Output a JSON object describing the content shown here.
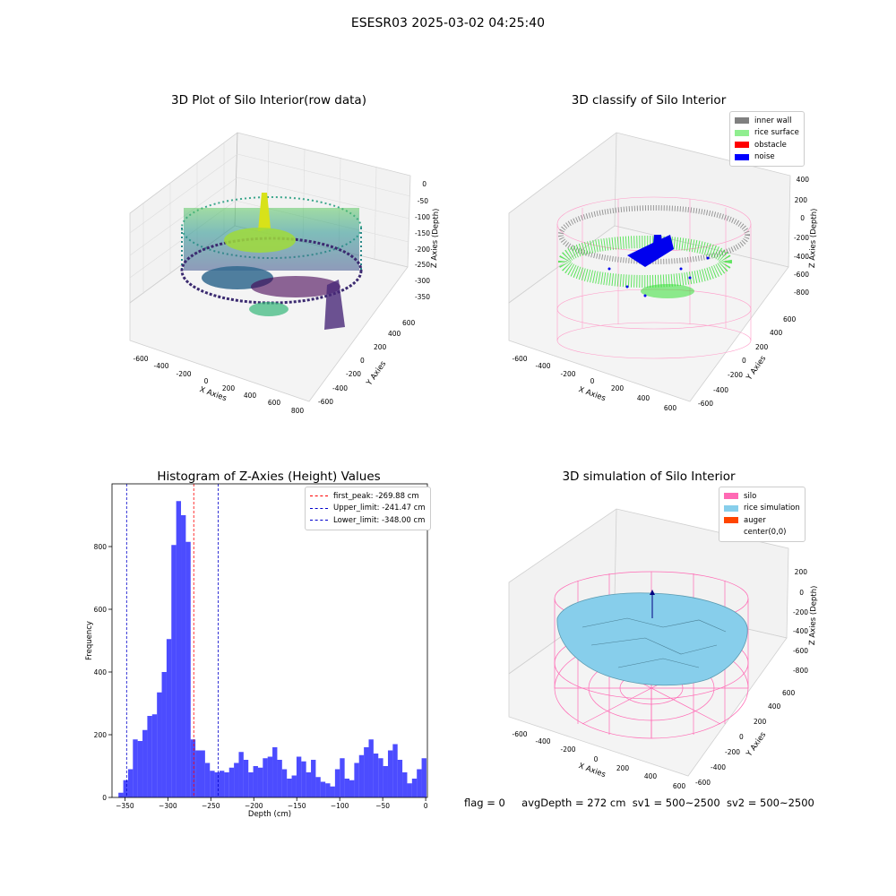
{
  "suptitle": "ESESR03 2025-03-02 04:25:40",
  "panels": {
    "raw": {
      "title": "3D Plot of Silo Interior(row data)",
      "xlabel": "X Axies",
      "ylabel": "Y Axies",
      "zlabel": "Z Axies (Depth)",
      "xticks": [
        "-600",
        "-400",
        "-200",
        "0",
        "200",
        "400",
        "600",
        "800"
      ],
      "yticks": [
        "-600",
        "-400",
        "-200",
        "0",
        "200",
        "400",
        "600"
      ],
      "zticks": [
        "0",
        "-50",
        "-100",
        "-150",
        "-200",
        "-250",
        "-300",
        "-350"
      ]
    },
    "classify": {
      "title": "3D classify of Silo Interior",
      "xlabel": "X Axies",
      "ylabel": "Y Axies",
      "zlabel": "Z Axies (Depth)",
      "xticks": [
        "-600",
        "-400",
        "-200",
        "0",
        "200",
        "400",
        "600"
      ],
      "yticks": [
        "-600",
        "-400",
        "-200",
        "0",
        "200",
        "400",
        "600"
      ],
      "zticks": [
        "400",
        "200",
        "0",
        "-200",
        "-400",
        "-600",
        "-800"
      ],
      "legend": [
        {
          "label": "inner wall",
          "color": "#808080"
        },
        {
          "label": "rice surface",
          "color": "#90ee90"
        },
        {
          "label": "obstacle",
          "color": "#ff0000"
        },
        {
          "label": "noise",
          "color": "#0000ff"
        }
      ]
    },
    "simulation": {
      "title": "3D simulation of Silo Interior",
      "xlabel": "X Axies",
      "ylabel": "Y Axies",
      "zlabel": "Z Axies (Depth)",
      "xticks": [
        "-600",
        "-400",
        "-200",
        "0",
        "200",
        "400",
        "600"
      ],
      "yticks": [
        "-600",
        "-400",
        "-200",
        "0",
        "200",
        "400",
        "600"
      ],
      "zticks": [
        "200",
        "0",
        "-200",
        "-400",
        "-600",
        "-800"
      ],
      "legend": [
        {
          "label": "silo",
          "color": "#ff69b4"
        },
        {
          "label": "rice simulation",
          "color": "#87ceeb"
        },
        {
          "label": "auger",
          "color": "#ff4500"
        },
        {
          "label": "center(0,0)",
          "color": "#ffffff"
        }
      ]
    }
  },
  "chart_data": {
    "type": "bar",
    "title": "Histogram of Z-Axies (Height) Values",
    "xlabel": "Depth (cm)",
    "ylabel": "Frequency",
    "xlim": [
      -365,
      2
    ],
    "ylim": [
      0,
      1000
    ],
    "xticks": [
      -350,
      -300,
      -250,
      -200,
      -150,
      -100,
      -50,
      0
    ],
    "yticks": [
      0,
      200,
      400,
      600,
      800
    ],
    "bar_color": "#0000ff",
    "bin_width": 5.6,
    "bin_left_edges": [
      -357.5,
      -351.9,
      -346.3,
      -340.7,
      -335.1,
      -329.5,
      -323.9,
      -318.3,
      -312.7,
      -307.1,
      -301.5,
      -295.9,
      -290.3,
      -284.7,
      -279.1,
      -273.5,
      -267.9,
      -262.3,
      -256.7,
      -251.1,
      -245.5,
      -239.9,
      -234.3,
      -228.7,
      -223.1,
      -217.5,
      -211.9,
      -206.3,
      -200.7,
      -195.1,
      -189.5,
      -183.9,
      -178.3,
      -172.7,
      -167.1,
      -161.5,
      -155.9,
      -150.3,
      -144.7,
      -139.1,
      -133.5,
      -127.9,
      -122.3,
      -116.7,
      -111.1,
      -105.5,
      -99.9,
      -94.3,
      -88.7,
      -83.1,
      -77.5,
      -71.9,
      -66.3,
      -60.7,
      -55.1,
      -49.5,
      -43.9,
      -38.3,
      -32.7,
      -27.1,
      -21.5,
      -15.9,
      -10.3,
      -4.7
    ],
    "values": [
      15,
      55,
      90,
      185,
      180,
      215,
      260,
      265,
      335,
      400,
      505,
      805,
      945,
      900,
      815,
      185,
      150,
      150,
      110,
      85,
      80,
      85,
      80,
      95,
      110,
      145,
      120,
      80,
      100,
      95,
      125,
      130,
      160,
      120,
      90,
      60,
      70,
      130,
      115,
      80,
      120,
      65,
      50,
      45,
      35,
      90,
      125,
      60,
      55,
      110,
      135,
      160,
      185,
      140,
      125,
      100,
      150,
      170,
      120,
      80,
      45,
      60,
      90,
      125
    ],
    "annotations": [
      {
        "label": "first_peak: -269.88 cm",
        "value": -269.88,
        "color": "#ff0000"
      },
      {
        "label": "Upper_limit: -241.47 cm",
        "value": -241.47,
        "color": "#0000cc"
      },
      {
        "label": "Lower_limit: -348.00 cm",
        "value": -348.0,
        "color": "#0000cc"
      }
    ]
  },
  "status": {
    "flag": "flag = 0",
    "avg_depth": "avgDepth = 272 cm",
    "sv1": "sv1 = 500~2500",
    "sv2": "sv2 = 500~2500"
  }
}
